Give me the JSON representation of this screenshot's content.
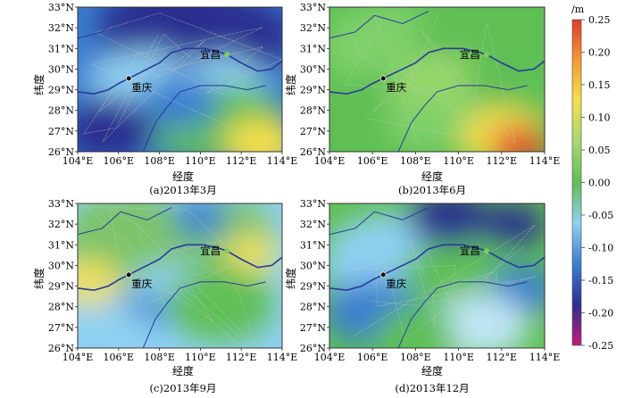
{
  "panels": [
    {
      "caption": "(a)2013年3月",
      "palette": [
        "#2b2f8f",
        "#3a7fd0",
        "#8fd0f2",
        "#5fbf55",
        "#f4e04a"
      ]
    },
    {
      "caption": "(b)2013年6月",
      "palette": [
        "#7fd06a",
        "#5fbf55",
        "#9bd86c",
        "#f4e04a",
        "#e23a2c"
      ]
    },
    {
      "caption": "(c)2013年9月",
      "palette": [
        "#7cc46a",
        "#8fd0f2",
        "#3a7fd0",
        "#f0e060",
        "#5fbf55"
      ]
    },
    {
      "caption": "(d)2013年12月",
      "palette": [
        "#8fd0f2",
        "#5fbf55",
        "#3a7fd0",
        "#2b2f8f",
        "#bfe6f5"
      ]
    }
  ],
  "axes": {
    "xlabel": "经度",
    "ylabel": "纬度",
    "xticks": [
      "104°E",
      "106°E",
      "108°E",
      "110°E",
      "112°E",
      "114°E"
    ],
    "yticks": [
      "33°N",
      "32°N",
      "31°N",
      "30°N",
      "29°N",
      "28°N",
      "27°N",
      "26°N"
    ],
    "lon_range": [
      104,
      114
    ],
    "lat_range": [
      26,
      33
    ]
  },
  "cities": [
    {
      "name": "重庆",
      "lon": 106.5,
      "lat": 29.55
    },
    {
      "name": "宜昌",
      "lon": 111.3,
      "lat": 30.7
    }
  ],
  "colorbar": {
    "unit": "/m",
    "ticks": [
      "0.25",
      "0.20",
      "0.15",
      "0.10",
      "0.05",
      "0.00",
      "-0.05",
      "-0.10",
      "-0.15",
      "-0.20",
      "-0.25"
    ],
    "range": [
      -0.25,
      0.25
    ],
    "colors": [
      "#c51b7d",
      "#2b2f8f",
      "#3a7fd0",
      "#8fd0f2",
      "#5fbf55",
      "#a8d86c",
      "#f4e04a",
      "#f39b30",
      "#e23a2c"
    ]
  }
}
